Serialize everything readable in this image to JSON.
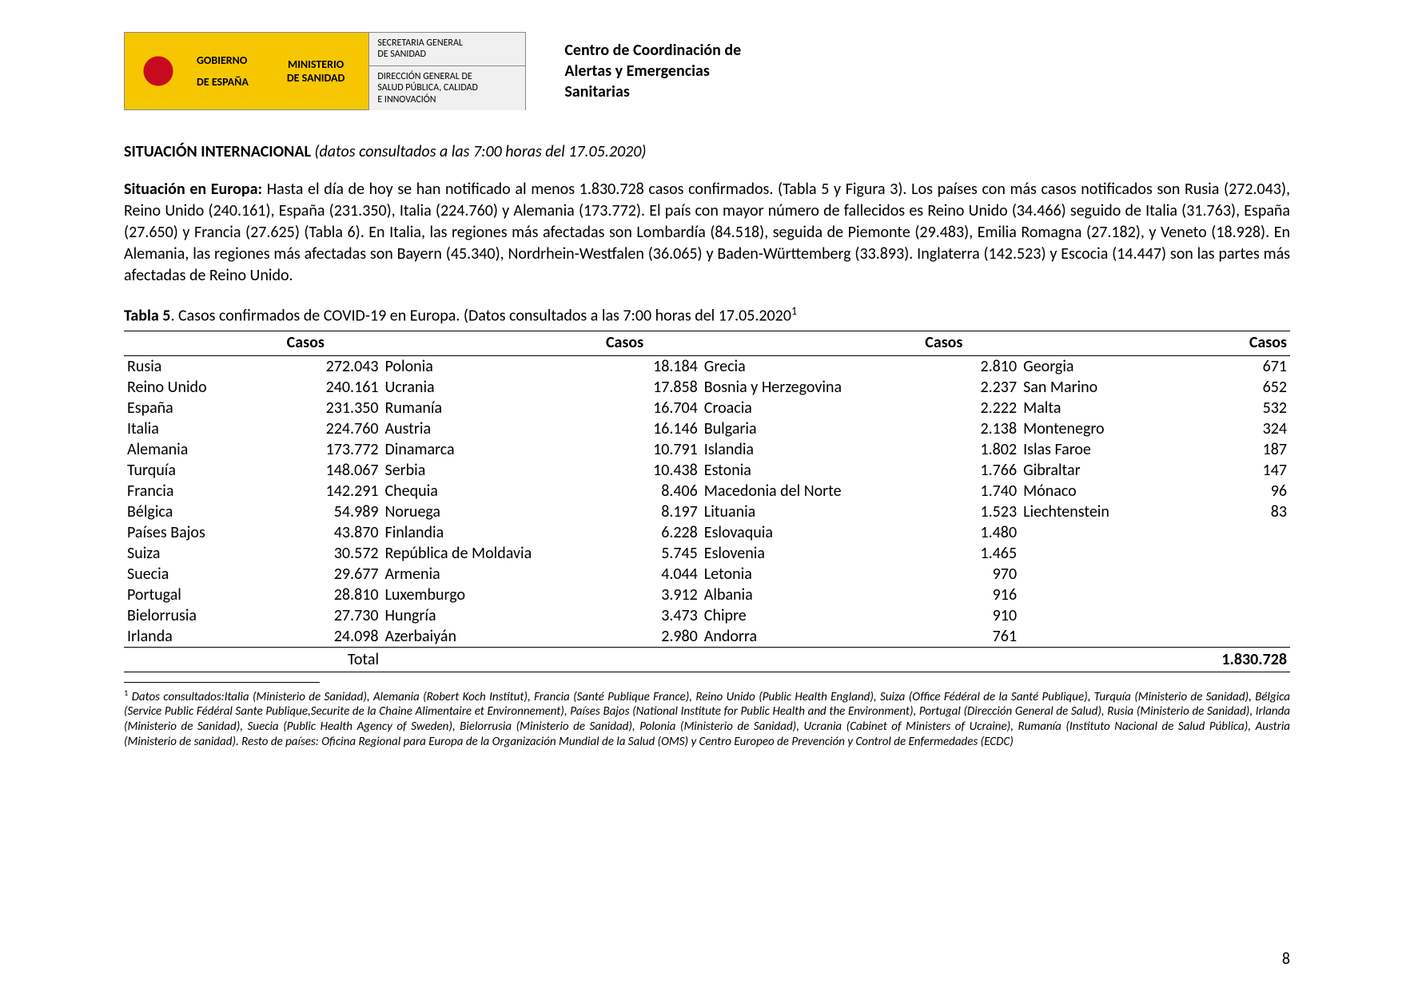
{
  "header": {
    "gobierno_line1": "GOBIERNO",
    "gobierno_line2": "DE ESPAÑA",
    "ministerio_line1": "MINISTERIO",
    "ministerio_line2": "DE SANIDAD",
    "secretaria_line1": "SECRETARIA GENERAL",
    "secretaria_line2": "DE SANIDAD",
    "direccion_line1": "DIRECCIÓN GENERAL DE",
    "direccion_line2": "SALUD PÚBLICA, CALIDAD",
    "direccion_line3": "E INNOVACIÓN",
    "centro_line1": "Centro de Coordinación de",
    "centro_line2": "Alertas y Emergencias",
    "centro_line3": "Sanitarias"
  },
  "section": {
    "title_bold": "SITUACIÓN INTERNACIONAL",
    "title_italic": " (datos consultados a las 7:00 horas del 17.05.2020)",
    "para_bold_lead": "Situación en Europa:",
    "para_rest": " Hasta el día de hoy se han notificado al menos 1.830.728 casos confirmados. (Tabla 5 y Figura 3). Los países con más casos notificados son Rusia (272.043), Reino Unido (240.161), España (231.350), Italia (224.760) y Alemania (173.772).  El país con mayor número de fallecidos es Reino Unido (34.466) seguido de Italia (31.763), España (27.650) y Francia (27.625) (Tabla 6). En Italia, las regiones más afectadas son Lombardía (84.518), seguida de Piemonte (29.483), Emilia Romagna (27.182), y Veneto (18.928). En Alemania, las regiones más afectadas son Bayern (45.340), Nordrhein-Westfalen (36.065) y Baden-Württemberg (33.893). Inglaterra (142.523) y Escocia (14.447) son las partes más afectadas de Reino Unido."
  },
  "table": {
    "caption_bold": "Tabla 5",
    "caption_rest": ". Casos confirmados de COVID-19 en Europa. (Datos consultados a las 7:00 horas del 17.05.2020",
    "caption_sup": "1",
    "header_casos": "Casos",
    "total_label": "Total",
    "total_value": "1.830.728",
    "col1": [
      {
        "c": "Rusia",
        "v": "272.043"
      },
      {
        "c": "Reino Unido",
        "v": "240.161"
      },
      {
        "c": "España",
        "v": "231.350"
      },
      {
        "c": "Italia",
        "v": "224.760"
      },
      {
        "c": "Alemania",
        "v": "173.772"
      },
      {
        "c": "Turquía",
        "v": "148.067"
      },
      {
        "c": "Francia",
        "v": "142.291"
      },
      {
        "c": "Bélgica",
        "v": "54.989"
      },
      {
        "c": "Países Bajos",
        "v": "43.870"
      },
      {
        "c": "Suiza",
        "v": "30.572"
      },
      {
        "c": "Suecia",
        "v": "29.677"
      },
      {
        "c": "Portugal",
        "v": "28.810"
      },
      {
        "c": "Bielorrusia",
        "v": "27.730"
      },
      {
        "c": "Irlanda",
        "v": "24.098"
      }
    ],
    "col2": [
      {
        "c": "Polonia",
        "v": "18.184"
      },
      {
        "c": "Ucrania",
        "v": "17.858"
      },
      {
        "c": "Rumanía",
        "v": "16.704"
      },
      {
        "c": "Austria",
        "v": "16.146"
      },
      {
        "c": "Dinamarca",
        "v": "10.791"
      },
      {
        "c": "Serbia",
        "v": "10.438"
      },
      {
        "c": "Chequia",
        "v": "8.406"
      },
      {
        "c": "Noruega",
        "v": "8.197"
      },
      {
        "c": "Finlandia",
        "v": "6.228"
      },
      {
        "c": "República de Moldavia",
        "v": "5.745"
      },
      {
        "c": "Armenia",
        "v": "4.044"
      },
      {
        "c": "Luxemburgo",
        "v": "3.912"
      },
      {
        "c": "Hungría",
        "v": "3.473"
      },
      {
        "c": "Azerbaiyán",
        "v": "2.980"
      }
    ],
    "col3": [
      {
        "c": "Grecia",
        "v": "2.810"
      },
      {
        "c": "Bosnia y Herzegovina",
        "v": "2.237"
      },
      {
        "c": "Croacia",
        "v": "2.222"
      },
      {
        "c": "Bulgaria",
        "v": "2.138"
      },
      {
        "c": "Islandia",
        "v": "1.802"
      },
      {
        "c": "Estonia",
        "v": "1.766"
      },
      {
        "c": "Macedonia del Norte",
        "v": "1.740"
      },
      {
        "c": "Lituania",
        "v": "1.523"
      },
      {
        "c": "Eslovaquia",
        "v": "1.480"
      },
      {
        "c": "Eslovenia",
        "v": "1.465"
      },
      {
        "c": "Letonia",
        "v": "970"
      },
      {
        "c": "Albania",
        "v": "916"
      },
      {
        "c": "Chipre",
        "v": "910"
      },
      {
        "c": "Andorra",
        "v": "761"
      }
    ],
    "col4": [
      {
        "c": "Georgia",
        "v": "671"
      },
      {
        "c": "San Marino",
        "v": "652"
      },
      {
        "c": "Malta",
        "v": "532"
      },
      {
        "c": "Montenegro",
        "v": "324"
      },
      {
        "c": "Islas Faroe",
        "v": "187"
      },
      {
        "c": "Gibraltar",
        "v": "147"
      },
      {
        "c": "Mónaco",
        "v": "96"
      },
      {
        "c": "Liechtenstein",
        "v": "83"
      },
      {
        "c": "",
        "v": ""
      },
      {
        "c": "",
        "v": ""
      },
      {
        "c": "",
        "v": ""
      },
      {
        "c": "",
        "v": ""
      },
      {
        "c": "",
        "v": ""
      },
      {
        "c": "",
        "v": ""
      }
    ]
  },
  "footnote": {
    "sup": "1",
    "text": " Datos consultados:Italia (Ministerio de Sanidad), Alemania (Robert Koch Institut), Francia (Santé Publique France), Reino Unido (Public Health England), Suiza (Office Fédéral de la Santé Publique), Turquía (Ministerio de Sanidad), Bélgica (Service Public Fédéral Sante Publique,Securite de la Chaine Alimentaire et Environnement), Países Bajos (National Institute for Public Health and the Environment), Portugal (Dirección General de Salud), Rusia (Ministerio de Sanidad), Irlanda (Ministerio de Sanidad),  Suecia (Public Health Agency of Sweden), Bielorrusia (Ministerio de Sanidad),  Polonia (Ministerio de Sanidad),  Ucrania (Cabinet of Ministers of Ucraine), Rumanía (Instituto Nacional de Salud Pública), Austria (Ministerio de sanidad).  Resto de países: Oficina Regional para Europa de la Organización Mundial de la Salud (OMS) y Centro Europeo de Prevención y Control de Enfermedades (ECDC)"
  },
  "page_number": "8",
  "style": {
    "page_bg": "#ffffff",
    "text_color": "#000000",
    "banner_yellow": "#f6c700",
    "banner_grey": "#f0f0f0",
    "border_color": "#888888",
    "font_body_pt": 20,
    "font_footnote_pt": 15,
    "font_banner_pt": 14
  }
}
